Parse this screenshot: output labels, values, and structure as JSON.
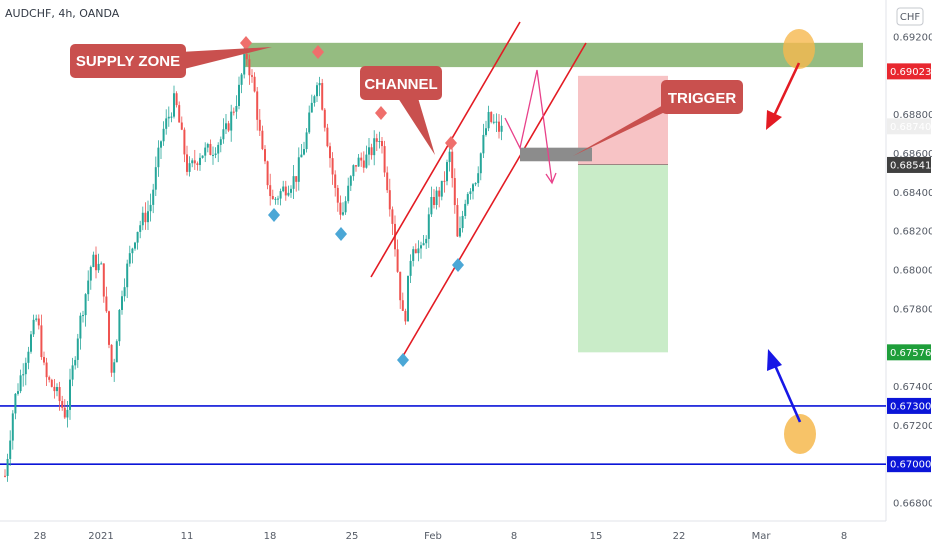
{
  "chart_data": {
    "type": "candlestick",
    "title": "AUDCHF, 4h, OANDA",
    "currency_button": "CHF",
    "y_axis": {
      "range": [
        0.6665,
        0.6942
      ],
      "ticks": [
        "0.69200",
        "0.68800",
        "0.68600",
        "0.68400",
        "0.68200",
        "0.68000",
        "0.67800",
        "0.67400",
        "0.67200",
        "0.66800"
      ]
    },
    "x_axis": {
      "ticks": [
        "28",
        "2021",
        "11",
        "18",
        "25",
        "Feb",
        "8",
        "15",
        "22",
        "Mar",
        "8"
      ]
    },
    "price_tags": [
      {
        "value": "0.69023",
        "price": 0.69023,
        "color": "#e8272f"
      },
      {
        "value": "0.68740",
        "price": 0.6874,
        "color": "#eeeeee",
        "text_color": "#333333"
      },
      {
        "value": "0.68541",
        "price": 0.68541,
        "color": "#404040"
      },
      {
        "value": "0.67576",
        "price": 0.67576,
        "color": "#1e9e3a"
      },
      {
        "value": "0.67300",
        "price": 0.673,
        "color": "#0b15d8"
      },
      {
        "value": "0.67000",
        "price": 0.67,
        "color": "#0b15d8"
      }
    ],
    "horizontal_lines": [
      {
        "price": 0.673,
        "color": "#0b15d8"
      },
      {
        "price": 0.67,
        "color": "#0b15d8"
      }
    ],
    "zones": {
      "supply": {
        "price_top": 0.6917,
        "price_bottom": 0.69045,
        "color": "#8fb87a"
      },
      "stop": {
        "price_top": 0.69,
        "price_bottom": 0.68541,
        "color": "#f7c3c5"
      },
      "target": {
        "price_top": 0.68541,
        "price_bottom": 0.67576,
        "color": "#c9ecc8"
      },
      "trigger_box": {
        "price_top": 0.6863,
        "price_bottom": 0.6856,
        "color": "#8c8c8c"
      }
    },
    "annotations": [
      {
        "text": "SUPPLY ZONE",
        "color": "#c9504e"
      },
      {
        "text": "CHANNEL",
        "color": "#c9504e"
      },
      {
        "text": "TRIGGER",
        "color": "#c9504e"
      }
    ],
    "candle_colors": {
      "up": "#26a69a",
      "down": "#ef5350"
    }
  }
}
